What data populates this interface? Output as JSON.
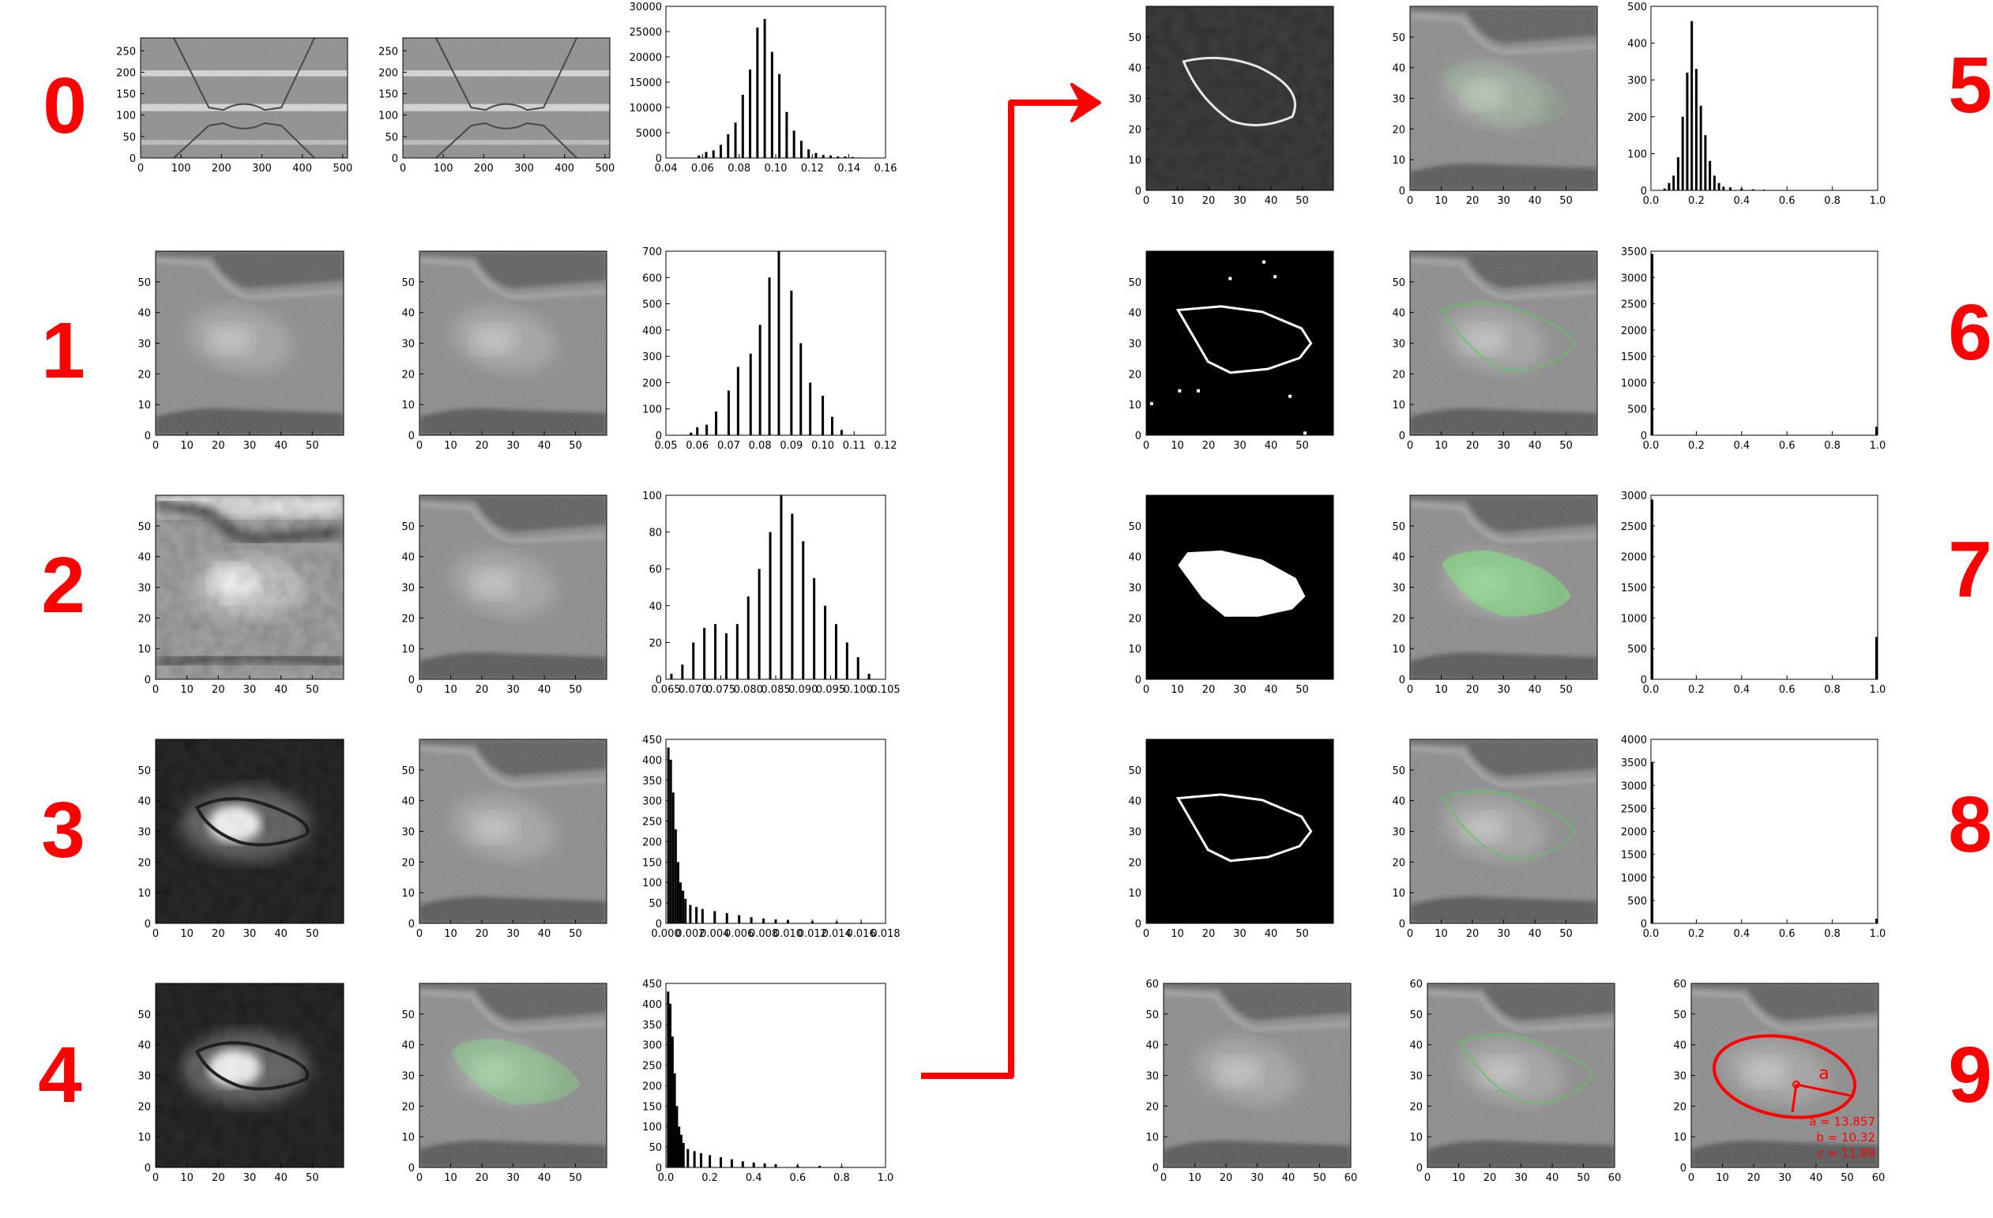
{
  "steps": [
    "0",
    "1",
    "2",
    "3",
    "4",
    "5",
    "6",
    "7",
    "8",
    "9"
  ],
  "colors": {
    "label": "#ff0000",
    "arrow": "#ff0000",
    "contour": "#62c462",
    "fill_green": "#7ee87e",
    "ellipse": "#ff0000"
  },
  "panels": {
    "microscopy_ticks": {
      "x": [
        "0",
        "10",
        "20",
        "30",
        "40",
        "50"
      ],
      "y": [
        "0",
        "10",
        "20",
        "30",
        "40",
        "50"
      ],
      "x60": [
        "0",
        "10",
        "20",
        "30",
        "40",
        "50",
        "60"
      ],
      "y60": [
        "0",
        "10",
        "20",
        "30",
        "40",
        "50",
        "60"
      ],
      "full_x": [
        "0",
        "100",
        "200",
        "300",
        "400",
        "500"
      ],
      "full_y": [
        "0",
        "50",
        "100",
        "150",
        "200",
        "250"
      ]
    },
    "ellipse_annotation": {
      "axis_label": "a",
      "lines": [
        "a = 13.857",
        "b = 10.32",
        "c = 11.89"
      ]
    }
  },
  "chart_data": [
    {
      "type": "bar",
      "step": "0",
      "xlim": [
        0.04,
        0.16
      ],
      "ylim": [
        0,
        30000
      ],
      "xticks": [
        "0.04",
        "0.06",
        "0.08",
        "0.10",
        "0.12",
        "0.14",
        "0.16"
      ],
      "yticks": [
        "0",
        "5000",
        "10000",
        "15000",
        "20000",
        "25000",
        "30000"
      ],
      "x": [
        0.058,
        0.062,
        0.066,
        0.07,
        0.074,
        0.078,
        0.082,
        0.086,
        0.09,
        0.094,
        0.098,
        0.102,
        0.106,
        0.11,
        0.114,
        0.118,
        0.122,
        0.126,
        0.13,
        0.134,
        0.138,
        0.142,
        0.146
      ],
      "values": [
        500,
        1200,
        1500,
        2600,
        4700,
        7000,
        12500,
        17500,
        25800,
        27500,
        21000,
        16600,
        9100,
        5400,
        3400,
        1700,
        1000,
        600,
        500,
        300,
        300,
        200,
        100
      ]
    },
    {
      "type": "bar",
      "step": "1",
      "xlim": [
        0.05,
        0.12
      ],
      "ylim": [
        0,
        700
      ],
      "xticks": [
        "0.05",
        "0.06",
        "0.07",
        "0.08",
        "0.09",
        "0.10",
        "0.11",
        "0.12"
      ],
      "yticks": [
        "0",
        "100",
        "200",
        "300",
        "400",
        "500",
        "600",
        "700"
      ],
      "x": [
        0.058,
        0.06,
        0.063,
        0.066,
        0.07,
        0.073,
        0.077,
        0.08,
        0.083,
        0.086,
        0.09,
        0.093,
        0.096,
        0.1,
        0.103,
        0.106
      ],
      "values": [
        10,
        30,
        40,
        90,
        170,
        260,
        310,
        420,
        600,
        700,
        550,
        350,
        200,
        150,
        70,
        20
      ]
    },
    {
      "type": "bar",
      "step": "2",
      "xlim": [
        0.065,
        0.105
      ],
      "ylim": [
        0,
        100
      ],
      "xticks": [
        "0.065",
        "0.070",
        "0.075",
        "0.080",
        "0.085",
        "0.090",
        "0.095",
        "0.100",
        "0.105"
      ],
      "yticks": [
        "0",
        "20",
        "40",
        "60",
        "80",
        "100"
      ],
      "x": [
        0.066,
        0.068,
        0.07,
        0.072,
        0.074,
        0.076,
        0.078,
        0.08,
        0.082,
        0.084,
        0.086,
        0.088,
        0.09,
        0.092,
        0.094,
        0.096,
        0.098,
        0.1,
        0.102
      ],
      "values": [
        3,
        8,
        20,
        28,
        30,
        25,
        30,
        45,
        60,
        80,
        100,
        90,
        75,
        55,
        40,
        30,
        20,
        12,
        3
      ]
    },
    {
      "type": "bar",
      "step": "3",
      "xlim": [
        0.0,
        0.018
      ],
      "ylim": [
        0,
        450
      ],
      "xticks": [
        "0.000",
        "0.002",
        "0.004",
        "0.006",
        "0.008",
        "0.010",
        "0.012",
        "0.014",
        "0.016",
        "0.018"
      ],
      "yticks": [
        "0",
        "50",
        "100",
        "150",
        "200",
        "250",
        "300",
        "350",
        "400",
        "450"
      ],
      "x": [
        0.0002,
        0.0004,
        0.0006,
        0.0008,
        0.001,
        0.0012,
        0.0014,
        0.0016,
        0.002,
        0.0025,
        0.003,
        0.004,
        0.005,
        0.006,
        0.007,
        0.008,
        0.009,
        0.01,
        0.012,
        0.014,
        0.016
      ],
      "values": [
        430,
        400,
        320,
        230,
        150,
        100,
        80,
        60,
        45,
        40,
        35,
        30,
        25,
        20,
        15,
        12,
        10,
        8,
        5,
        4,
        2
      ]
    },
    {
      "type": "bar",
      "step": "4",
      "xlim": [
        0.0,
        1.0
      ],
      "ylim": [
        0,
        450
      ],
      "xticks": [
        "0.0",
        "0.2",
        "0.4",
        "0.6",
        "0.8",
        "1.0"
      ],
      "yticks": [
        "0",
        "50",
        "100",
        "150",
        "200",
        "250",
        "300",
        "350",
        "400",
        "450"
      ],
      "x": [
        0.01,
        0.02,
        0.03,
        0.04,
        0.05,
        0.06,
        0.07,
        0.08,
        0.1,
        0.13,
        0.16,
        0.2,
        0.25,
        0.3,
        0.35,
        0.4,
        0.45,
        0.5,
        0.6,
        0.7,
        0.8,
        0.9
      ],
      "values": [
        430,
        400,
        320,
        230,
        150,
        100,
        80,
        60,
        45,
        40,
        35,
        30,
        25,
        20,
        15,
        12,
        10,
        8,
        5,
        4,
        2,
        1
      ]
    },
    {
      "type": "bar",
      "step": "5",
      "xlim": [
        0.0,
        1.0
      ],
      "ylim": [
        0,
        500
      ],
      "xticks": [
        "0.0",
        "0.2",
        "0.4",
        "0.6",
        "0.8",
        "1.0"
      ],
      "yticks": [
        "0",
        "100",
        "200",
        "300",
        "400",
        "500"
      ],
      "x": [
        0.06,
        0.08,
        0.1,
        0.12,
        0.14,
        0.16,
        0.18,
        0.2,
        0.22,
        0.24,
        0.26,
        0.28,
        0.3,
        0.32,
        0.35,
        0.4,
        0.45,
        0.5
      ],
      "values": [
        5,
        20,
        40,
        90,
        200,
        320,
        460,
        330,
        230,
        150,
        80,
        40,
        20,
        10,
        8,
        5,
        3,
        2
      ]
    },
    {
      "type": "bar",
      "step": "6",
      "xlim": [
        0.0,
        1.0
      ],
      "ylim": [
        0,
        3500
      ],
      "xticks": [
        "0.0",
        "0.2",
        "0.4",
        "0.6",
        "0.8",
        "1.0"
      ],
      "yticks": [
        "0",
        "500",
        "1000",
        "1500",
        "2000",
        "2500",
        "3000",
        "3500"
      ],
      "x": [
        0.0,
        1.0
      ],
      "values": [
        3450,
        160
      ]
    },
    {
      "type": "bar",
      "step": "7",
      "xlim": [
        0.0,
        1.0
      ],
      "ylim": [
        0,
        3000
      ],
      "xticks": [
        "0.0",
        "0.2",
        "0.4",
        "0.6",
        "0.8",
        "1.0"
      ],
      "yticks": [
        "0",
        "500",
        "1000",
        "1500",
        "2000",
        "2500",
        "3000"
      ],
      "x": [
        0.0,
        1.0
      ],
      "values": [
        2930,
        690
      ]
    },
    {
      "type": "bar",
      "step": "8",
      "xlim": [
        0.0,
        1.0
      ],
      "ylim": [
        0,
        4000
      ],
      "xticks": [
        "0.0",
        "0.2",
        "0.4",
        "0.6",
        "0.8",
        "1.0"
      ],
      "yticks": [
        "0",
        "500",
        "1000",
        "1500",
        "2000",
        "2500",
        "3000",
        "3500",
        "4000"
      ],
      "x": [
        0.0,
        1.0
      ],
      "values": [
        3500,
        100
      ]
    }
  ]
}
